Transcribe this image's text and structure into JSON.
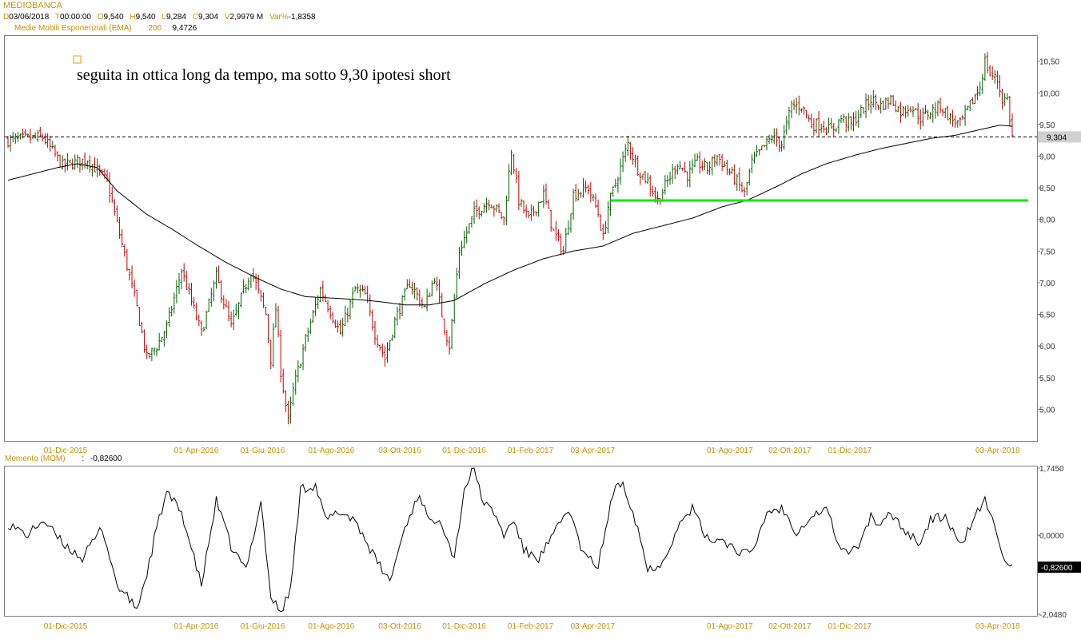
{
  "header": {
    "title": "MEDIOBANCA",
    "quote": [
      {
        "label": "D",
        "value": "03/06/2018"
      },
      {
        "label": "T",
        "value": "00:00:00"
      },
      {
        "label": "O",
        "value": "9,540"
      },
      {
        "label": "H",
        "value": "9,540"
      },
      {
        "label": "L",
        "value": "9,284"
      },
      {
        "label": "C",
        "value": "9,304"
      },
      {
        "label": "V",
        "value": "2,9979 M"
      },
      {
        "label": "Var%",
        "value": "-1,8358"
      }
    ],
    "ema_label": "Medie Mobili Esponenziali (EMA)",
    "ema_period": "200 :",
    "ema_value": "9,4726",
    "mom_label": "Momento (MOM)",
    "mom_sep": ":",
    "mom_value": "-0,82600"
  },
  "colors": {
    "up": "#006400",
    "down": "#c80000",
    "ema": "#000000",
    "support": "#00ee00",
    "label": "#c89000",
    "annotation_box": "#e0a000"
  },
  "chart_data": [
    {
      "type": "candlestick",
      "title": "MEDIOBANCA",
      "annotation": "seguita in ottica long da tempo, ma sotto 9,30 ipotesi short",
      "x_ticks": [
        "01-Dic-2015",
        "01-Apr-2016",
        "01-Giu-2016",
        "01-Ago-2016",
        "03-Ott-2016",
        "01-Dic-2016",
        "01-Feb-2017",
        "03-Apr-2017",
        "01-Ago-2017",
        "02-Ott-2017",
        "01-Dic-2017",
        "03-Apr-2018"
      ],
      "y_ticks": [
        "5,00",
        "5,50",
        "6,00",
        "6,50",
        "7,00",
        "7,50",
        "8,00",
        "8,50",
        "9,00",
        "9,50",
        "10,00",
        "10,50"
      ],
      "ylim": [
        4.5,
        10.9
      ],
      "last_price_label": "9,304",
      "last_price": 9.304,
      "support_level": 8.3,
      "ema_period": 200,
      "ema_last": 9.4726,
      "close_path": [
        [
          0,
          9.25
        ],
        [
          14,
          9.3
        ],
        [
          22,
          8.85
        ],
        [
          32,
          8.95
        ],
        [
          40,
          8.6
        ],
        [
          46,
          7.6
        ],
        [
          52,
          6.6
        ],
        [
          56,
          5.8
        ],
        [
          60,
          6.0
        ],
        [
          64,
          6.3
        ],
        [
          70,
          7.2
        ],
        [
          78,
          6.2
        ],
        [
          84,
          7.1
        ],
        [
          90,
          6.3
        ],
        [
          98,
          7.2
        ],
        [
          104,
          6.5
        ],
        [
          106,
          5.8
        ],
        [
          108,
          6.6
        ],
        [
          110,
          5.6
        ],
        [
          113,
          4.8
        ],
        [
          115,
          5.3
        ],
        [
          120,
          6.1
        ],
        [
          126,
          6.9
        ],
        [
          134,
          6.2
        ],
        [
          140,
          6.9
        ],
        [
          144,
          6.8
        ],
        [
          148,
          6.2
        ],
        [
          152,
          5.8
        ],
        [
          156,
          6.4
        ],
        [
          162,
          7.0
        ],
        [
          168,
          6.6
        ],
        [
          172,
          7.1
        ],
        [
          176,
          6.3
        ],
        [
          178,
          6.0
        ],
        [
          182,
          7.5
        ],
        [
          188,
          8.1
        ],
        [
          194,
          8.3
        ],
        [
          200,
          8.0
        ],
        [
          203,
          9.1
        ],
        [
          206,
          8.3
        ],
        [
          210,
          8.0
        ],
        [
          216,
          8.4
        ],
        [
          220,
          7.8
        ],
        [
          224,
          7.5
        ],
        [
          228,
          8.4
        ],
        [
          234,
          8.5
        ],
        [
          238,
          8.1
        ],
        [
          240,
          7.7
        ],
        [
          242,
          8.2
        ],
        [
          246,
          8.7
        ],
        [
          250,
          9.2
        ],
        [
          254,
          8.8
        ],
        [
          258,
          8.6
        ],
        [
          262,
          8.3
        ],
        [
          266,
          8.6
        ],
        [
          270,
          8.9
        ],
        [
          274,
          8.7
        ],
        [
          278,
          8.9
        ],
        [
          282,
          8.8
        ],
        [
          286,
          9.0
        ],
        [
          290,
          8.8
        ],
        [
          294,
          8.6
        ],
        [
          297,
          8.4
        ],
        [
          300,
          8.9
        ],
        [
          304,
          9.1
        ],
        [
          308,
          9.3
        ],
        [
          312,
          9.2
        ],
        [
          316,
          9.8
        ],
        [
          320,
          9.8
        ],
        [
          324,
          9.5
        ],
        [
          328,
          9.5
        ],
        [
          332,
          9.4
        ],
        [
          336,
          9.6
        ],
        [
          340,
          9.5
        ],
        [
          344,
          9.7
        ],
        [
          348,
          9.9
        ],
        [
          352,
          9.8
        ],
        [
          356,
          9.9
        ],
        [
          360,
          9.7
        ],
        [
          364,
          9.8
        ],
        [
          368,
          9.6
        ],
        [
          372,
          9.7
        ],
        [
          376,
          9.8
        ],
        [
          380,
          9.6
        ],
        [
          384,
          9.5
        ],
        [
          388,
          9.8
        ],
        [
          392,
          10.1
        ],
        [
          394,
          10.5
        ],
        [
          396,
          10.3
        ],
        [
          399,
          10.2
        ],
        [
          401,
          9.9
        ],
        [
          403,
          9.9
        ],
        [
          405,
          9.3
        ]
      ],
      "ema_path": [
        [
          0,
          8.62
        ],
        [
          20,
          8.82
        ],
        [
          28,
          8.88
        ],
        [
          36,
          8.82
        ],
        [
          44,
          8.45
        ],
        [
          56,
          8.08
        ],
        [
          66,
          7.85
        ],
        [
          76,
          7.6
        ],
        [
          88,
          7.32
        ],
        [
          100,
          7.08
        ],
        [
          110,
          6.9
        ],
        [
          120,
          6.78
        ],
        [
          134,
          6.75
        ],
        [
          142,
          6.73
        ],
        [
          150,
          6.7
        ],
        [
          160,
          6.65
        ],
        [
          170,
          6.65
        ],
        [
          180,
          6.72
        ],
        [
          192,
          6.98
        ],
        [
          204,
          7.2
        ],
        [
          216,
          7.38
        ],
        [
          228,
          7.5
        ],
        [
          240,
          7.58
        ],
        [
          252,
          7.78
        ],
        [
          264,
          7.9
        ],
        [
          276,
          8.02
        ],
        [
          288,
          8.2
        ],
        [
          298,
          8.3
        ],
        [
          310,
          8.52
        ],
        [
          320,
          8.72
        ],
        [
          330,
          8.88
        ],
        [
          342,
          9.02
        ],
        [
          352,
          9.12
        ],
        [
          362,
          9.2
        ],
        [
          372,
          9.28
        ],
        [
          382,
          9.33
        ],
        [
          392,
          9.42
        ],
        [
          400,
          9.49
        ],
        [
          405,
          9.4726
        ]
      ]
    },
    {
      "type": "line",
      "title": "Momento (MOM)",
      "y_ticks": [
        "1,7450",
        "0,0000",
        "-2,0480"
      ],
      "ylim": [
        -2.048,
        1.745
      ],
      "last_value_label": "-0,82600",
      "last_value": -0.826,
      "path": [
        [
          0,
          0.3
        ],
        [
          8,
          0.0
        ],
        [
          14,
          0.4
        ],
        [
          22,
          -0.2
        ],
        [
          30,
          -0.6
        ],
        [
          38,
          0.2
        ],
        [
          44,
          -1.3
        ],
        [
          52,
          -1.9
        ],
        [
          56,
          -1.0
        ],
        [
          60,
          0.2
        ],
        [
          64,
          1.1
        ],
        [
          70,
          0.6
        ],
        [
          78,
          -1.3
        ],
        [
          84,
          0.9
        ],
        [
          90,
          -0.3
        ],
        [
          96,
          -0.9
        ],
        [
          102,
          0.9
        ],
        [
          106,
          -1.6
        ],
        [
          110,
          -2.0
        ],
        [
          114,
          -1.4
        ],
        [
          118,
          1.2
        ],
        [
          124,
          1.3
        ],
        [
          128,
          0.4
        ],
        [
          134,
          0.6
        ],
        [
          140,
          0.4
        ],
        [
          148,
          -0.6
        ],
        [
          154,
          -1.2
        ],
        [
          160,
          0.2
        ],
        [
          166,
          1.1
        ],
        [
          170,
          0.3
        ],
        [
          174,
          0.5
        ],
        [
          180,
          -0.6
        ],
        [
          184,
          1.2
        ],
        [
          188,
          1.75
        ],
        [
          192,
          0.8
        ],
        [
          196,
          0.6
        ],
        [
          200,
          0.0
        ],
        [
          204,
          0.4
        ],
        [
          208,
          -0.4
        ],
        [
          214,
          -0.6
        ],
        [
          220,
          0.0
        ],
        [
          226,
          0.7
        ],
        [
          232,
          -0.5
        ],
        [
          238,
          -0.8
        ],
        [
          244,
          1.1
        ],
        [
          248,
          1.4
        ],
        [
          254,
          0.2
        ],
        [
          258,
          -0.9
        ],
        [
          264,
          -0.7
        ],
        [
          270,
          0.2
        ],
        [
          276,
          0.7
        ],
        [
          282,
          -0.1
        ],
        [
          288,
          -0.1
        ],
        [
          294,
          -0.4
        ],
        [
          300,
          -0.5
        ],
        [
          306,
          0.6
        ],
        [
          312,
          0.7
        ],
        [
          318,
          0.1
        ],
        [
          324,
          0.5
        ],
        [
          330,
          0.7
        ],
        [
          336,
          -0.4
        ],
        [
          342,
          -0.4
        ],
        [
          348,
          0.5
        ],
        [
          352,
          0.2
        ],
        [
          356,
          0.6
        ],
        [
          362,
          0.1
        ],
        [
          368,
          -0.2
        ],
        [
          372,
          0.4
        ],
        [
          378,
          0.5
        ],
        [
          384,
          -0.3
        ],
        [
          390,
          0.5
        ],
        [
          394,
          0.9
        ],
        [
          398,
          0.2
        ],
        [
          402,
          -0.6
        ],
        [
          405,
          -0.826
        ]
      ]
    }
  ]
}
